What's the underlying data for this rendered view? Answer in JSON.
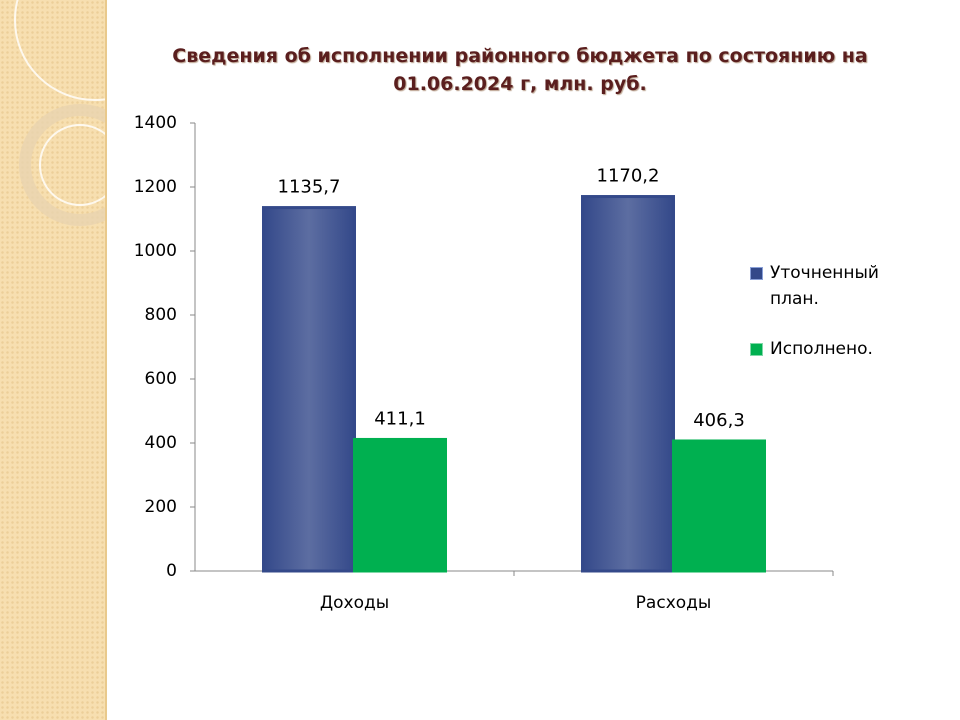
{
  "chart_data": {
    "type": "bar",
    "title": "Сведения об исполнении районного бюджета по состоянию на 01.06.2024 г, млн. руб.",
    "categories": [
      "Доходы",
      "Расходы"
    ],
    "series": [
      {
        "name": "Уточненный план.",
        "color": "#34498a",
        "values": [
          1135.7,
          1170.2
        ],
        "value_labels": [
          "1135,7",
          "1170,2"
        ]
      },
      {
        "name": "Исполнено.",
        "color": "#00b050",
        "values": [
          411.1,
          406.3
        ],
        "value_labels": [
          "411,1",
          "406,3"
        ]
      }
    ],
    "ylim": [
      0,
      1400
    ],
    "yticks": [
      0,
      200,
      400,
      600,
      800,
      1000,
      1200,
      1400
    ],
    "grid": false,
    "legend": "right"
  }
}
